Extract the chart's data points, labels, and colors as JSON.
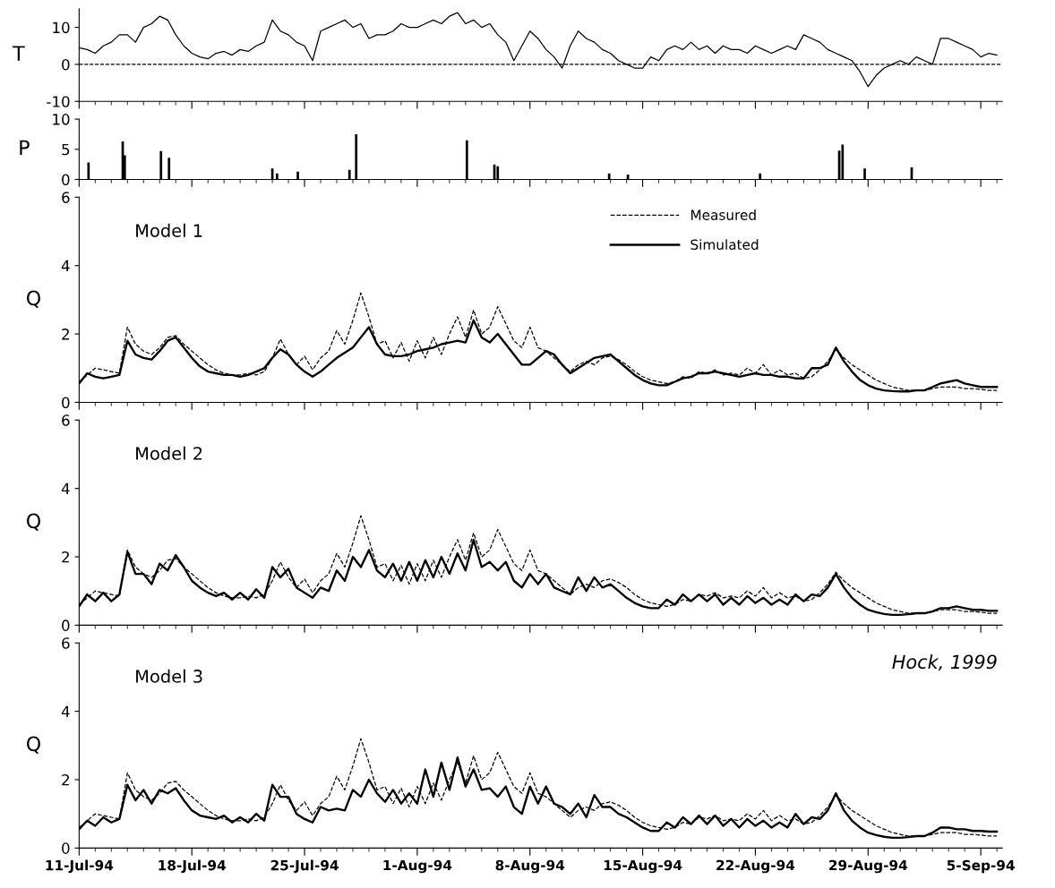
{
  "chart_data": [
    {
      "type": "line",
      "ylabel": "T",
      "xlim": [
        "1994-07-11",
        "1994-09-06T08:00"
      ],
      "ylim": [
        -10,
        15
      ],
      "yticks": [
        -10,
        0,
        10
      ],
      "tick_labels": "y",
      "xticks": [
        {
          "value": "1994-07-11",
          "label": null
        },
        {
          "value": "1994-07-18",
          "label": null
        },
        {
          "value": "1994-07-25",
          "label": null
        },
        {
          "value": "1994-08-01",
          "label": null
        },
        {
          "value": "1994-08-08",
          "label": null
        },
        {
          "value": "1994-08-15",
          "label": null
        },
        {
          "value": "1994-08-22",
          "label": null
        },
        {
          "value": "1994-08-29",
          "label": null
        },
        {
          "value": "1994-09-05",
          "label": null
        }
      ],
      "ref_lines": [
        {
          "axis": "y",
          "value": 0,
          "color": "#000000",
          "line_style": "dashed"
        }
      ],
      "x": [
        "1994-07-11T00:00",
        "1994-07-11T12:00",
        "1994-07-12T00:00",
        "1994-07-12T12:00",
        "1994-07-13T00:00",
        "1994-07-13T12:00",
        "1994-07-14T00:00",
        "1994-07-14T12:00",
        "1994-07-15T00:00",
        "1994-07-15T12:00",
        "1994-07-16T00:00",
        "1994-07-16T12:00",
        "1994-07-17T00:00",
        "1994-07-17T12:00",
        "1994-07-18T00:00",
        "1994-07-18T12:00",
        "1994-07-19T00:00",
        "1994-07-19T12:00",
        "1994-07-20T00:00",
        "1994-07-20T12:00",
        "1994-07-21T00:00",
        "1994-07-21T12:00",
        "1994-07-22T00:00",
        "1994-07-22T12:00",
        "1994-07-23T00:00",
        "1994-07-23T12:00",
        "1994-07-24T00:00",
        "1994-07-24T12:00",
        "1994-07-25T00:00",
        "1994-07-25T12:00",
        "1994-07-26T00:00",
        "1994-07-26T12:00",
        "1994-07-27T00:00",
        "1994-07-27T12:00",
        "1994-07-28T00:00",
        "1994-07-28T12:00",
        "1994-07-29T00:00",
        "1994-07-29T12:00",
        "1994-07-30T00:00",
        "1994-07-30T12:00",
        "1994-07-31T00:00",
        "1994-07-31T12:00",
        "1994-08-01T00:00",
        "1994-08-01T12:00",
        "1994-08-02T00:00",
        "1994-08-02T12:00",
        "1994-08-03T00:00",
        "1994-08-03T12:00",
        "1994-08-04T00:00",
        "1994-08-04T12:00",
        "1994-08-05T00:00",
        "1994-08-05T12:00",
        "1994-08-06T00:00",
        "1994-08-06T12:00",
        "1994-08-07T00:00",
        "1994-08-07T12:00",
        "1994-08-08T00:00",
        "1994-08-08T12:00",
        "1994-08-09T00:00",
        "1994-08-09T12:00",
        "1994-08-10T00:00",
        "1994-08-10T12:00",
        "1994-08-11T00:00",
        "1994-08-11T12:00",
        "1994-08-12T00:00",
        "1994-08-12T12:00",
        "1994-08-13T00:00",
        "1994-08-13T12:00",
        "1994-08-14T00:00",
        "1994-08-14T12:00",
        "1994-08-15T00:00",
        "1994-08-15T12:00",
        "1994-08-16T00:00",
        "1994-08-16T12:00",
        "1994-08-17T00:00",
        "1994-08-17T12:00",
        "1994-08-18T00:00",
        "1994-08-18T12:00",
        "1994-08-19T00:00",
        "1994-08-19T12:00",
        "1994-08-20T00:00",
        "1994-08-20T12:00",
        "1994-08-21T00:00",
        "1994-08-21T12:00",
        "1994-08-22T00:00",
        "1994-08-22T12:00",
        "1994-08-23T00:00",
        "1994-08-23T12:00",
        "1994-08-24T00:00",
        "1994-08-24T12:00",
        "1994-08-25T00:00",
        "1994-08-25T12:00",
        "1994-08-26T00:00",
        "1994-08-26T12:00",
        "1994-08-27T00:00",
        "1994-08-27T12:00",
        "1994-08-28T00:00",
        "1994-08-28T12:00",
        "1994-08-29T00:00",
        "1994-08-29T12:00",
        "1994-08-30T00:00",
        "1994-08-30T12:00",
        "1994-08-31T00:00",
        "1994-08-31T12:00",
        "1994-09-01T00:00",
        "1994-09-01T12:00",
        "1994-09-02T00:00",
        "1994-09-02T12:00",
        "1994-09-03T00:00",
        "1994-09-03T12:00",
        "1994-09-04T00:00",
        "1994-09-04T12:00",
        "1994-09-05T00:00",
        "1994-09-05T12:00",
        "1994-09-06T00:00"
      ],
      "series": [
        {
          "color": "#000000",
          "values": [
            4.5,
            4,
            3,
            5,
            6,
            8,
            8,
            6,
            10,
            11,
            13,
            12,
            8,
            5,
            3,
            2,
            1.5,
            3,
            3.5,
            2.5,
            4,
            3.5,
            5,
            6,
            12,
            9,
            8,
            6,
            5,
            1,
            9,
            10,
            11,
            12,
            10,
            11,
            7,
            8,
            8,
            9,
            11,
            10,
            10,
            11,
            12,
            11,
            13,
            14,
            11,
            12,
            10,
            11,
            8,
            6,
            1,
            5,
            9,
            7,
            4,
            2,
            -1,
            5,
            9,
            7,
            6,
            4,
            3,
            1,
            0,
            -1,
            -1,
            2,
            1,
            4,
            5,
            4,
            6,
            4,
            5,
            3,
            5,
            4,
            4,
            3,
            5,
            4,
            3,
            4,
            5,
            4,
            8,
            7,
            6,
            4,
            3,
            2,
            1,
            -2,
            -6,
            -3,
            -1,
            0,
            1,
            0,
            2,
            1,
            0,
            7,
            7,
            6,
            5,
            4,
            2,
            3,
            2.5
          ]
        }
      ]
    },
    {
      "type": "bar",
      "ylabel": "P",
      "xlim": [
        "1994-07-11",
        "1994-09-06T08:00"
      ],
      "ylim": [
        0,
        10
      ],
      "yticks": [
        0,
        5,
        10
      ],
      "tick_labels": "y",
      "xticks": [
        {
          "value": "1994-07-11",
          "label": null
        },
        {
          "value": "1994-07-18",
          "label": null
        },
        {
          "value": "1994-07-25",
          "label": null
        },
        {
          "value": "1994-08-01",
          "label": null
        },
        {
          "value": "1994-08-08",
          "label": null
        },
        {
          "value": "1994-08-15",
          "label": null
        },
        {
          "value": "1994-08-22",
          "label": null
        },
        {
          "value": "1994-08-29",
          "label": null
        },
        {
          "value": "1994-09-05",
          "label": null
        }
      ],
      "x": [
        "1994-07-11T14:00",
        "1994-07-13T17:00",
        "1994-07-13T20:00",
        "1994-07-16T02:00",
        "1994-07-16T14:00",
        "1994-07-23T00:00",
        "1994-07-23T07:00",
        "1994-07-24T14:00",
        "1994-07-27T19:00",
        "1994-07-28T05:00",
        "1994-08-04T02:00",
        "1994-08-05T19:00",
        "1994-08-06T00:00",
        "1994-08-12T22:00",
        "1994-08-14T02:00",
        "1994-08-22T07:00",
        "1994-08-27T05:00",
        "1994-08-27T10:00",
        "1994-08-28T19:00",
        "1994-08-31T17:00"
      ],
      "series": [
        {
          "color": "#000000",
          "values": [
            2.8,
            6.3,
            4,
            4.7,
            3.6,
            1.8,
            1,
            1.3,
            1.6,
            7.5,
            6.5,
            2.5,
            2.2,
            1,
            0.8,
            1,
            4.8,
            5.8,
            1.8,
            2
          ]
        }
      ]
    },
    {
      "type": "line",
      "ylabel": "Q",
      "xlim": [
        "1994-07-11",
        "1994-09-06T08:00"
      ],
      "ylim": [
        0,
        6
      ],
      "yticks": [
        0,
        2,
        4,
        6
      ],
      "tick_labels": "y",
      "legend": "top right",
      "annotations": [
        "Model 1"
      ],
      "xticks": [
        {
          "value": "1994-07-11",
          "label": null
        },
        {
          "value": "1994-07-18",
          "label": null
        },
        {
          "value": "1994-07-25",
          "label": null
        },
        {
          "value": "1994-08-01",
          "label": null
        },
        {
          "value": "1994-08-08",
          "label": null
        },
        {
          "value": "1994-08-15",
          "label": null
        },
        {
          "value": "1994-08-22",
          "label": null
        },
        {
          "value": "1994-08-29",
          "label": null
        },
        {
          "value": "1994-09-05",
          "label": null
        }
      ],
      "x": [
        "1994-07-11T00:00",
        "1994-07-11T12:00",
        "1994-07-12T00:00",
        "1994-07-12T12:00",
        "1994-07-13T00:00",
        "1994-07-13T12:00",
        "1994-07-14T00:00",
        "1994-07-14T12:00",
        "1994-07-15T00:00",
        "1994-07-15T12:00",
        "1994-07-16T00:00",
        "1994-07-16T12:00",
        "1994-07-17T00:00",
        "1994-07-17T12:00",
        "1994-07-18T00:00",
        "1994-07-18T12:00",
        "1994-07-19T00:00",
        "1994-07-19T12:00",
        "1994-07-20T00:00",
        "1994-07-20T12:00",
        "1994-07-21T00:00",
        "1994-07-21T12:00",
        "1994-07-22T00:00",
        "1994-07-22T12:00",
        "1994-07-23T00:00",
        "1994-07-23T12:00",
        "1994-07-24T00:00",
        "1994-07-24T12:00",
        "1994-07-25T00:00",
        "1994-07-25T12:00",
        "1994-07-26T00:00",
        "1994-07-26T12:00",
        "1994-07-27T00:00",
        "1994-07-27T12:00",
        "1994-07-28T00:00",
        "1994-07-28T12:00",
        "1994-07-29T00:00",
        "1994-07-29T12:00",
        "1994-07-30T00:00",
        "1994-07-30T12:00",
        "1994-07-31T00:00",
        "1994-07-31T12:00",
        "1994-08-01T00:00",
        "1994-08-01T12:00",
        "1994-08-02T00:00",
        "1994-08-02T12:00",
        "1994-08-03T00:00",
        "1994-08-03T12:00",
        "1994-08-04T00:00",
        "1994-08-04T12:00",
        "1994-08-05T00:00",
        "1994-08-05T12:00",
        "1994-08-06T00:00",
        "1994-08-06T12:00",
        "1994-08-07T00:00",
        "1994-08-07T12:00",
        "1994-08-08T00:00",
        "1994-08-08T12:00",
        "1994-08-09T00:00",
        "1994-08-09T12:00",
        "1994-08-10T00:00",
        "1994-08-10T12:00",
        "1994-08-11T00:00",
        "1994-08-11T12:00",
        "1994-08-12T00:00",
        "1994-08-12T12:00",
        "1994-08-13T00:00",
        "1994-08-13T12:00",
        "1994-08-14T00:00",
        "1994-08-14T12:00",
        "1994-08-15T00:00",
        "1994-08-15T12:00",
        "1994-08-16T00:00",
        "1994-08-16T12:00",
        "1994-08-17T00:00",
        "1994-08-17T12:00",
        "1994-08-18T00:00",
        "1994-08-18T12:00",
        "1994-08-19T00:00",
        "1994-08-19T12:00",
        "1994-08-20T00:00",
        "1994-08-20T12:00",
        "1994-08-21T00:00",
        "1994-08-21T12:00",
        "1994-08-22T00:00",
        "1994-08-22T12:00",
        "1994-08-23T00:00",
        "1994-08-23T12:00",
        "1994-08-24T00:00",
        "1994-08-24T12:00",
        "1994-08-25T00:00",
        "1994-08-25T12:00",
        "1994-08-26T00:00",
        "1994-08-26T12:00",
        "1994-08-27T00:00",
        "1994-08-27T12:00",
        "1994-08-28T00:00",
        "1994-08-28T12:00",
        "1994-08-29T00:00",
        "1994-08-29T12:00",
        "1994-08-30T00:00",
        "1994-08-30T12:00",
        "1994-08-31T00:00",
        "1994-08-31T12:00",
        "1994-09-01T00:00",
        "1994-09-01T12:00",
        "1994-09-02T00:00",
        "1994-09-02T12:00",
        "1994-09-03T00:00",
        "1994-09-03T12:00",
        "1994-09-04T00:00",
        "1994-09-04T12:00",
        "1994-09-05T00:00",
        "1994-09-05T12:00",
        "1994-09-06T00:00"
      ],
      "series": [
        {
          "name": "Measured",
          "color": "#000000",
          "line_style": "dashed",
          "values": [
            0.6,
            0.8,
            1.0,
            0.95,
            0.9,
            0.85,
            2.2,
            1.7,
            1.5,
            1.4,
            1.6,
            1.9,
            1.95,
            1.7,
            1.5,
            1.3,
            1.1,
            0.95,
            0.85,
            0.8,
            0.8,
            0.85,
            0.8,
            0.9,
            1.3,
            1.85,
            1.4,
            1.1,
            1.35,
            0.95,
            1.3,
            1.5,
            2.1,
            1.7,
            2.4,
            3.2,
            2.5,
            1.7,
            1.8,
            1.3,
            1.75,
            1.2,
            1.8,
            1.3,
            1.9,
            1.4,
            2.0,
            2.5,
            1.9,
            2.7,
            2.0,
            2.2,
            2.8,
            2.3,
            1.8,
            1.6,
            2.2,
            1.6,
            1.5,
            1.3,
            1.1,
            0.9,
            1.1,
            1.2,
            1.1,
            1.3,
            1.35,
            1.25,
            1.1,
            0.9,
            0.75,
            0.65,
            0.6,
            0.55,
            0.6,
            0.75,
            0.7,
            0.9,
            0.85,
            0.95,
            0.8,
            0.85,
            0.8,
            1.0,
            0.85,
            1.1,
            0.8,
            0.95,
            0.8,
            0.85,
            0.7,
            0.75,
            0.95,
            1.2,
            1.55,
            1.3,
            1.1,
            0.95,
            0.8,
            0.65,
            0.55,
            0.45,
            0.4,
            0.35,
            0.35,
            0.35,
            0.4,
            0.45,
            0.45,
            0.45,
            0.4,
            0.4,
            0.38,
            0.35,
            0.35
          ]
        },
        {
          "name": "Simulated",
          "color": "#000000",
          "line_style": "solid",
          "values": [
            0.55,
            0.85,
            0.75,
            0.7,
            0.75,
            0.8,
            1.8,
            1.4,
            1.3,
            1.25,
            1.5,
            1.8,
            1.9,
            1.6,
            1.3,
            1.05,
            0.9,
            0.85,
            0.8,
            0.8,
            0.75,
            0.8,
            0.9,
            1.0,
            1.3,
            1.55,
            1.4,
            1.1,
            0.9,
            0.75,
            0.9,
            1.1,
            1.3,
            1.45,
            1.6,
            1.9,
            2.2,
            1.7,
            1.4,
            1.35,
            1.35,
            1.4,
            1.5,
            1.55,
            1.6,
            1.7,
            1.75,
            1.8,
            1.75,
            2.4,
            1.9,
            1.75,
            2.0,
            1.7,
            1.4,
            1.1,
            1.1,
            1.3,
            1.5,
            1.4,
            1.1,
            0.85,
            1.0,
            1.15,
            1.3,
            1.35,
            1.4,
            1.2,
            1.0,
            0.8,
            0.65,
            0.55,
            0.5,
            0.5,
            0.6,
            0.7,
            0.75,
            0.85,
            0.85,
            0.9,
            0.85,
            0.8,
            0.75,
            0.8,
            0.85,
            0.8,
            0.8,
            0.75,
            0.75,
            0.7,
            0.7,
            1.0,
            1.0,
            1.1,
            1.6,
            1.2,
            0.9,
            0.65,
            0.5,
            0.4,
            0.35,
            0.33,
            0.32,
            0.32,
            0.35,
            0.35,
            0.45,
            0.55,
            0.6,
            0.65,
            0.55,
            0.5,
            0.45,
            0.45,
            0.45
          ]
        }
      ]
    },
    {
      "type": "line",
      "ylabel": "Q",
      "xlim": [
        "1994-07-11",
        "1994-09-06T08:00"
      ],
      "ylim": [
        0,
        6
      ],
      "yticks": [
        0,
        2,
        4,
        6
      ],
      "tick_labels": "y",
      "annotations": [
        "Model 2"
      ],
      "xticks": [
        {
          "value": "1994-07-11",
          "label": null
        },
        {
          "value": "1994-07-18",
          "label": null
        },
        {
          "value": "1994-07-25",
          "label": null
        },
        {
          "value": "1994-08-01",
          "label": null
        },
        {
          "value": "1994-08-08",
          "label": null
        },
        {
          "value": "1994-08-15",
          "label": null
        },
        {
          "value": "1994-08-22",
          "label": null
        },
        {
          "value": "1994-08-29",
          "label": null
        },
        {
          "value": "1994-09-05",
          "label": null
        }
      ],
      "x": [
        "1994-07-11T00:00",
        "1994-07-11T12:00",
        "1994-07-12T00:00",
        "1994-07-12T12:00",
        "1994-07-13T00:00",
        "1994-07-13T12:00",
        "1994-07-14T00:00",
        "1994-07-14T12:00",
        "1994-07-15T00:00",
        "1994-07-15T12:00",
        "1994-07-16T00:00",
        "1994-07-16T12:00",
        "1994-07-17T00:00",
        "1994-07-17T12:00",
        "1994-07-18T00:00",
        "1994-07-18T12:00",
        "1994-07-19T00:00",
        "1994-07-19T12:00",
        "1994-07-20T00:00",
        "1994-07-20T12:00",
        "1994-07-21T00:00",
        "1994-07-21T12:00",
        "1994-07-22T00:00",
        "1994-07-22T12:00",
        "1994-07-23T00:00",
        "1994-07-23T12:00",
        "1994-07-24T00:00",
        "1994-07-24T12:00",
        "1994-07-25T00:00",
        "1994-07-25T12:00",
        "1994-07-26T00:00",
        "1994-07-26T12:00",
        "1994-07-27T00:00",
        "1994-07-27T12:00",
        "1994-07-28T00:00",
        "1994-07-28T12:00",
        "1994-07-29T00:00",
        "1994-07-29T12:00",
        "1994-07-30T00:00",
        "1994-07-30T12:00",
        "1994-07-31T00:00",
        "1994-07-31T12:00",
        "1994-08-01T00:00",
        "1994-08-01T12:00",
        "1994-08-02T00:00",
        "1994-08-02T12:00",
        "1994-08-03T00:00",
        "1994-08-03T12:00",
        "1994-08-04T00:00",
        "1994-08-04T12:00",
        "1994-08-05T00:00",
        "1994-08-05T12:00",
        "1994-08-06T00:00",
        "1994-08-06T12:00",
        "1994-08-07T00:00",
        "1994-08-07T12:00",
        "1994-08-08T00:00",
        "1994-08-08T12:00",
        "1994-08-09T00:00",
        "1994-08-09T12:00",
        "1994-08-10T00:00",
        "1994-08-10T12:00",
        "1994-08-11T00:00",
        "1994-08-11T12:00",
        "1994-08-12T00:00",
        "1994-08-12T12:00",
        "1994-08-13T00:00",
        "1994-08-13T12:00",
        "1994-08-14T00:00",
        "1994-08-14T12:00",
        "1994-08-15T00:00",
        "1994-08-15T12:00",
        "1994-08-16T00:00",
        "1994-08-16T12:00",
        "1994-08-17T00:00",
        "1994-08-17T12:00",
        "1994-08-18T00:00",
        "1994-08-18T12:00",
        "1994-08-19T00:00",
        "1994-08-19T12:00",
        "1994-08-20T00:00",
        "1994-08-20T12:00",
        "1994-08-21T00:00",
        "1994-08-21T12:00",
        "1994-08-22T00:00",
        "1994-08-22T12:00",
        "1994-08-23T00:00",
        "1994-08-23T12:00",
        "1994-08-24T00:00",
        "1994-08-24T12:00",
        "1994-08-25T00:00",
        "1994-08-25T12:00",
        "1994-08-26T00:00",
        "1994-08-26T12:00",
        "1994-08-27T00:00",
        "1994-08-27T12:00",
        "1994-08-28T00:00",
        "1994-08-28T12:00",
        "1994-08-29T00:00",
        "1994-08-29T12:00",
        "1994-08-30T00:00",
        "1994-08-30T12:00",
        "1994-08-31T00:00",
        "1994-08-31T12:00",
        "1994-09-01T00:00",
        "1994-09-01T12:00",
        "1994-09-02T00:00",
        "1994-09-02T12:00",
        "1994-09-03T00:00",
        "1994-09-03T12:00",
        "1994-09-04T00:00",
        "1994-09-04T12:00",
        "1994-09-05T00:00",
        "1994-09-05T12:00",
        "1994-09-06T00:00"
      ],
      "series": [
        {
          "color": "#000000",
          "line_style": "dashed",
          "values": [
            0.6,
            0.8,
            1.0,
            0.95,
            0.9,
            0.85,
            2.2,
            1.7,
            1.5,
            1.4,
            1.6,
            1.9,
            1.95,
            1.7,
            1.5,
            1.3,
            1.1,
            0.95,
            0.85,
            0.8,
            0.8,
            0.85,
            0.8,
            0.9,
            1.3,
            1.85,
            1.4,
            1.1,
            1.35,
            0.95,
            1.3,
            1.5,
            2.1,
            1.7,
            2.4,
            3.2,
            2.5,
            1.7,
            1.8,
            1.3,
            1.75,
            1.2,
            1.8,
            1.3,
            1.9,
            1.4,
            2.0,
            2.5,
            1.9,
            2.7,
            2.0,
            2.2,
            2.8,
            2.3,
            1.8,
            1.6,
            2.2,
            1.6,
            1.5,
            1.3,
            1.1,
            0.9,
            1.1,
            1.2,
            1.1,
            1.3,
            1.35,
            1.25,
            1.1,
            0.9,
            0.75,
            0.65,
            0.6,
            0.55,
            0.6,
            0.75,
            0.7,
            0.9,
            0.85,
            0.95,
            0.8,
            0.85,
            0.8,
            1.0,
            0.85,
            1.1,
            0.8,
            0.95,
            0.8,
            0.85,
            0.7,
            0.75,
            0.95,
            1.2,
            1.55,
            1.3,
            1.1,
            0.95,
            0.8,
            0.65,
            0.55,
            0.45,
            0.4,
            0.35,
            0.35,
            0.35,
            0.4,
            0.45,
            0.45,
            0.45,
            0.4,
            0.4,
            0.38,
            0.35,
            0.35
          ]
        },
        {
          "color": "#000000",
          "line_style": "solid",
          "values": [
            0.55,
            0.9,
            0.7,
            0.95,
            0.7,
            0.9,
            2.15,
            1.5,
            1.5,
            1.2,
            1.8,
            1.6,
            2.05,
            1.7,
            1.3,
            1.1,
            0.95,
            0.85,
            0.95,
            0.75,
            0.95,
            0.75,
            1.05,
            0.8,
            1.7,
            1.4,
            1.65,
            1.1,
            0.95,
            0.8,
            1.1,
            1.0,
            1.6,
            1.3,
            2.0,
            1.7,
            2.2,
            1.6,
            1.4,
            1.8,
            1.3,
            1.85,
            1.3,
            1.9,
            1.4,
            2.0,
            1.5,
            2.1,
            1.6,
            2.5,
            1.7,
            1.85,
            1.6,
            1.85,
            1.3,
            1.1,
            1.5,
            1.2,
            1.5,
            1.1,
            1.0,
            0.9,
            1.4,
            1.0,
            1.4,
            1.1,
            1.2,
            1.0,
            0.8,
            0.65,
            0.55,
            0.5,
            0.5,
            0.75,
            0.6,
            0.9,
            0.7,
            0.9,
            0.7,
            0.9,
            0.6,
            0.8,
            0.6,
            0.85,
            0.65,
            0.8,
            0.6,
            0.75,
            0.6,
            0.9,
            0.7,
            0.9,
            0.85,
            1.1,
            1.5,
            1.1,
            0.8,
            0.6,
            0.45,
            0.38,
            0.33,
            0.3,
            0.3,
            0.32,
            0.35,
            0.35,
            0.4,
            0.5,
            0.5,
            0.55,
            0.5,
            0.45,
            0.45,
            0.42,
            0.42
          ]
        }
      ]
    },
    {
      "type": "line",
      "ylabel": "Q",
      "xlim": [
        "1994-07-11",
        "1994-09-06T08:00"
      ],
      "ylim": [
        0,
        6
      ],
      "yticks": [
        0,
        2,
        4,
        6
      ],
      "annotations": [
        "Model 3",
        "Hock, 1999"
      ],
      "xticks": [
        {
          "value": "1994-07-11",
          "label": "11-Jul-94"
        },
        {
          "value": "1994-07-18",
          "label": "18-Jul-94"
        },
        {
          "value": "1994-07-25",
          "label": "25-Jul-94"
        },
        {
          "value": "1994-08-01",
          "label": "1-Aug-94"
        },
        {
          "value": "1994-08-08",
          "label": "8-Aug-94"
        },
        {
          "value": "1994-08-15",
          "label": "15-Aug-94"
        },
        {
          "value": "1994-08-22",
          "label": "22-Aug-94"
        },
        {
          "value": "1994-08-29",
          "label": "29-Aug-94"
        },
        {
          "value": "1994-09-05",
          "label": "5-Sep-94"
        }
      ],
      "x": [
        "1994-07-11T00:00",
        "1994-07-11T12:00",
        "1994-07-12T00:00",
        "1994-07-12T12:00",
        "1994-07-13T00:00",
        "1994-07-13T12:00",
        "1994-07-14T00:00",
        "1994-07-14T12:00",
        "1994-07-15T00:00",
        "1994-07-15T12:00",
        "1994-07-16T00:00",
        "1994-07-16T12:00",
        "1994-07-17T00:00",
        "1994-07-17T12:00",
        "1994-07-18T00:00",
        "1994-07-18T12:00",
        "1994-07-19T00:00",
        "1994-07-19T12:00",
        "1994-07-20T00:00",
        "1994-07-20T12:00",
        "1994-07-21T00:00",
        "1994-07-21T12:00",
        "1994-07-22T00:00",
        "1994-07-22T12:00",
        "1994-07-23T00:00",
        "1994-07-23T12:00",
        "1994-07-24T00:00",
        "1994-07-24T12:00",
        "1994-07-25T00:00",
        "1994-07-25T12:00",
        "1994-07-26T00:00",
        "1994-07-26T12:00",
        "1994-07-27T00:00",
        "1994-07-27T12:00",
        "1994-07-28T00:00",
        "1994-07-28T12:00",
        "1994-07-29T00:00",
        "1994-07-29T12:00",
        "1994-07-30T00:00",
        "1994-07-30T12:00",
        "1994-07-31T00:00",
        "1994-07-31T12:00",
        "1994-08-01T00:00",
        "1994-08-01T12:00",
        "1994-08-02T00:00",
        "1994-08-02T12:00",
        "1994-08-03T00:00",
        "1994-08-03T12:00",
        "1994-08-04T00:00",
        "1994-08-04T12:00",
        "1994-08-05T00:00",
        "1994-08-05T12:00",
        "1994-08-06T00:00",
        "1994-08-06T12:00",
        "1994-08-07T00:00",
        "1994-08-07T12:00",
        "1994-08-08T00:00",
        "1994-08-08T12:00",
        "1994-08-09T00:00",
        "1994-08-09T12:00",
        "1994-08-10T00:00",
        "1994-08-10T12:00",
        "1994-08-11T00:00",
        "1994-08-11T12:00",
        "1994-08-12T00:00",
        "1994-08-12T12:00",
        "1994-08-13T00:00",
        "1994-08-13T12:00",
        "1994-08-14T00:00",
        "1994-08-14T12:00",
        "1994-08-15T00:00",
        "1994-08-15T12:00",
        "1994-08-16T00:00",
        "1994-08-16T12:00",
        "1994-08-17T00:00",
        "1994-08-17T12:00",
        "1994-08-18T00:00",
        "1994-08-18T12:00",
        "1994-08-19T00:00",
        "1994-08-19T12:00",
        "1994-08-20T00:00",
        "1994-08-20T12:00",
        "1994-08-21T00:00",
        "1994-08-21T12:00",
        "1994-08-22T00:00",
        "1994-08-22T12:00",
        "1994-08-23T00:00",
        "1994-08-23T12:00",
        "1994-08-24T00:00",
        "1994-08-24T12:00",
        "1994-08-25T00:00",
        "1994-08-25T12:00",
        "1994-08-26T00:00",
        "1994-08-26T12:00",
        "1994-08-27T00:00",
        "1994-08-27T12:00",
        "1994-08-28T00:00",
        "1994-08-28T12:00",
        "1994-08-29T00:00",
        "1994-08-29T12:00",
        "1994-08-30T00:00",
        "1994-08-30T12:00",
        "1994-08-31T00:00",
        "1994-08-31T12:00",
        "1994-09-01T00:00",
        "1994-09-01T12:00",
        "1994-09-02T00:00",
        "1994-09-02T12:00",
        "1994-09-03T00:00",
        "1994-09-03T12:00",
        "1994-09-04T00:00",
        "1994-09-04T12:00",
        "1994-09-05T00:00",
        "1994-09-05T12:00",
        "1994-09-06T00:00"
      ],
      "series": [
        {
          "color": "#000000",
          "line_style": "dashed",
          "values": [
            0.6,
            0.8,
            1.0,
            0.95,
            0.9,
            0.85,
            2.2,
            1.7,
            1.5,
            1.4,
            1.6,
            1.9,
            1.95,
            1.7,
            1.5,
            1.3,
            1.1,
            0.95,
            0.85,
            0.8,
            0.8,
            0.85,
            0.8,
            0.9,
            1.3,
            1.85,
            1.4,
            1.1,
            1.35,
            0.95,
            1.3,
            1.5,
            2.1,
            1.7,
            2.4,
            3.2,
            2.5,
            1.7,
            1.8,
            1.3,
            1.75,
            1.2,
            1.8,
            1.3,
            1.9,
            1.4,
            2.0,
            2.5,
            1.9,
            2.7,
            2.0,
            2.2,
            2.8,
            2.3,
            1.8,
            1.6,
            2.2,
            1.6,
            1.5,
            1.3,
            1.1,
            0.9,
            1.1,
            1.2,
            1.1,
            1.3,
            1.35,
            1.25,
            1.1,
            0.9,
            0.75,
            0.65,
            0.6,
            0.55,
            0.6,
            0.75,
            0.7,
            0.9,
            0.85,
            0.95,
            0.8,
            0.85,
            0.8,
            1.0,
            0.85,
            1.1,
            0.8,
            0.95,
            0.8,
            0.85,
            0.7,
            0.75,
            0.95,
            1.2,
            1.55,
            1.3,
            1.1,
            0.95,
            0.8,
            0.65,
            0.55,
            0.45,
            0.4,
            0.35,
            0.35,
            0.35,
            0.4,
            0.45,
            0.45,
            0.45,
            0.4,
            0.4,
            0.38,
            0.35,
            0.35
          ]
        },
        {
          "color": "#000000",
          "line_style": "solid",
          "values": [
            0.55,
            0.8,
            0.65,
            0.9,
            0.75,
            0.85,
            1.85,
            1.4,
            1.7,
            1.3,
            1.7,
            1.6,
            1.75,
            1.4,
            1.1,
            0.95,
            0.9,
            0.85,
            0.95,
            0.75,
            0.9,
            0.75,
            1.0,
            0.8,
            1.85,
            1.5,
            1.5,
            1.0,
            0.85,
            0.75,
            1.2,
            1.1,
            1.15,
            1.1,
            1.7,
            1.5,
            2.0,
            1.6,
            1.35,
            1.7,
            1.3,
            1.6,
            1.3,
            2.3,
            1.5,
            2.5,
            1.7,
            2.65,
            1.8,
            2.3,
            1.7,
            1.75,
            1.5,
            1.8,
            1.2,
            1.0,
            1.8,
            1.3,
            1.8,
            1.3,
            1.2,
            1.0,
            1.3,
            0.9,
            1.55,
            1.2,
            1.2,
            1.0,
            0.9,
            0.75,
            0.6,
            0.5,
            0.5,
            0.75,
            0.6,
            0.9,
            0.7,
            0.95,
            0.7,
            0.95,
            0.65,
            0.85,
            0.6,
            0.85,
            0.65,
            0.8,
            0.6,
            0.75,
            0.6,
            1.0,
            0.7,
            0.9,
            0.85,
            1.1,
            1.6,
            1.1,
            0.8,
            0.6,
            0.45,
            0.38,
            0.33,
            0.3,
            0.3,
            0.32,
            0.35,
            0.35,
            0.45,
            0.6,
            0.6,
            0.55,
            0.55,
            0.5,
            0.5,
            0.48,
            0.48
          ]
        }
      ]
    }
  ]
}
